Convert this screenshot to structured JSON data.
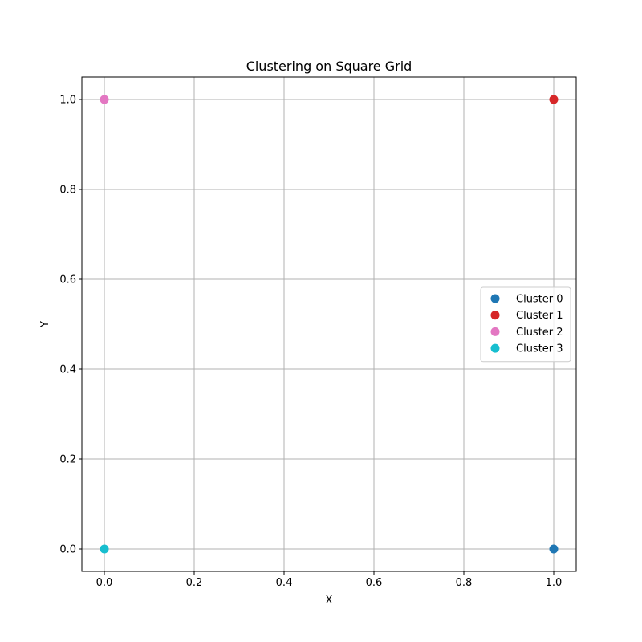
{
  "chart_data": {
    "type": "scatter",
    "title": "Clustering on Square Grid",
    "xlabel": "X",
    "ylabel": "Y",
    "xlim": [
      -0.05,
      1.05
    ],
    "ylim": [
      -0.05,
      1.05
    ],
    "xticks": [
      "0.0",
      "0.2",
      "0.4",
      "0.6",
      "0.8",
      "1.0"
    ],
    "yticks": [
      "0.0",
      "0.2",
      "0.4",
      "0.6",
      "0.8",
      "1.0"
    ],
    "grid": true,
    "legend_position": "center-right",
    "series": [
      {
        "name": "Cluster 0",
        "color": "#1f77b4",
        "points": [
          {
            "x": 1.0,
            "y": 0.0
          }
        ]
      },
      {
        "name": "Cluster 1",
        "color": "#d62728",
        "points": [
          {
            "x": 1.0,
            "y": 1.0
          }
        ]
      },
      {
        "name": "Cluster 2",
        "color": "#e377c2",
        "points": [
          {
            "x": 0.0,
            "y": 1.0
          }
        ]
      },
      {
        "name": "Cluster 3",
        "color": "#17becf",
        "points": [
          {
            "x": 0.0,
            "y": 0.0
          }
        ]
      }
    ]
  }
}
